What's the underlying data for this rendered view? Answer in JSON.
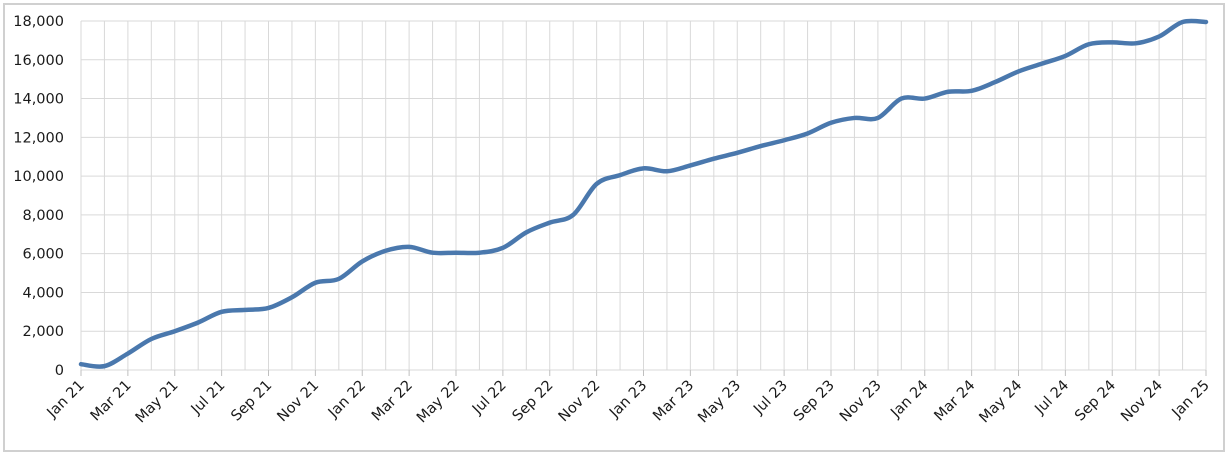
{
  "chart_data": {
    "type": "line",
    "title": "",
    "xlabel": "",
    "ylabel": "",
    "ylim": [
      0,
      18000
    ],
    "yticks": [
      0,
      2000,
      4000,
      6000,
      8000,
      10000,
      12000,
      14000,
      16000,
      18000
    ],
    "ytick_labels": [
      "0",
      "2,000",
      "4,000",
      "6,000",
      "8,000",
      "10,000",
      "12,000",
      "14,000",
      "16,000",
      "18,000"
    ],
    "grid": true,
    "legend": "none",
    "line_color": "#4a78ad",
    "x": [
      "Jan 21",
      "Feb 21",
      "Mar 21",
      "Apr 21",
      "May 21",
      "Jun 21",
      "Jul 21",
      "Aug 21",
      "Sep 21",
      "Oct 21",
      "Nov 21",
      "Dec 21",
      "Jan 22",
      "Feb 22",
      "Mar 22",
      "Apr 22",
      "May 22",
      "Jun 22",
      "Jul 22",
      "Aug 22",
      "Sep 22",
      "Oct 22",
      "Nov 22",
      "Dec 22",
      "Jan 23",
      "Feb 23",
      "Mar 23",
      "Apr 23",
      "May 23",
      "Jun 23",
      "Jul 23",
      "Aug 23",
      "Sep 23",
      "Oct 23",
      "Nov 23",
      "Dec 23",
      "Jan 24",
      "Feb 24",
      "Mar 24",
      "Apr 24",
      "May 24",
      "Jun 24",
      "Jul 24",
      "Aug 24",
      "Sep 24",
      "Oct 24",
      "Nov 24",
      "Dec 24",
      "Jan 25"
    ],
    "xtick_labels": [
      "Jan 21",
      "Mar 21",
      "May 21",
      "Jul 21",
      "Sep 21",
      "Nov 21",
      "Jan 22",
      "Mar 22",
      "May 22",
      "Jul 22",
      "Sep 22",
      "Nov 22",
      "Jan 23",
      "Mar 23",
      "May 23",
      "Jul 23",
      "Sep 23",
      "Nov 23",
      "Jan 24",
      "Mar 24",
      "May 24",
      "Jul 24",
      "Sep 24",
      "Nov 24",
      "Jan 25"
    ],
    "series": [
      {
        "values": [
          300,
          200,
          850,
          1600,
          2000,
          2450,
          3000,
          3100,
          3200,
          3750,
          4500,
          4700,
          5600,
          6150,
          6350,
          6050,
          6050,
          6050,
          6300,
          7100,
          7600,
          8000,
          9600,
          10050,
          10400,
          10250,
          10550,
          10900,
          11200,
          11550,
          11850,
          12200,
          12750,
          13000,
          13000,
          14000,
          14000,
          14350,
          14400,
          14850,
          15400,
          15800,
          16200,
          16800,
          16900,
          16850,
          17200,
          17950,
          17950
        ]
      }
    ]
  }
}
